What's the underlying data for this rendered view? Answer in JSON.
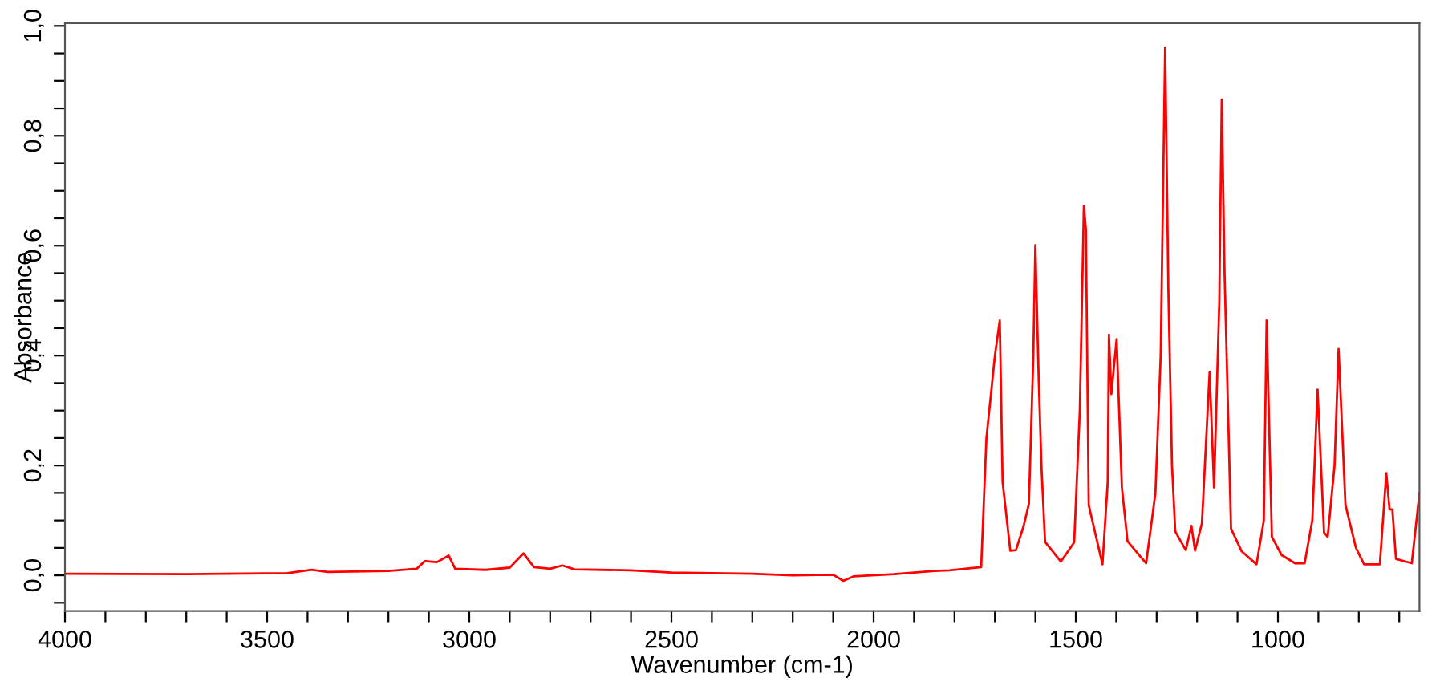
{
  "chart_data": {
    "type": "line",
    "xlabel": "Wavenumber (cm-1)",
    "ylabel": "Absorbance",
    "xlim": [
      4000,
      650
    ],
    "ylim": [
      -0.065,
      1.005
    ],
    "xticks": [
      4000,
      {
        "value": 3900,
        "label": null
      },
      {
        "value": 3800,
        "label": null
      },
      {
        "value": 3700,
        "label": null
      },
      {
        "value": 3600,
        "label": null
      },
      3500,
      {
        "value": 3400,
        "label": null
      },
      {
        "value": 3300,
        "label": null
      },
      {
        "value": 3200,
        "label": null
      },
      {
        "value": 3100,
        "label": null
      },
      3000,
      {
        "value": 2900,
        "label": null
      },
      {
        "value": 2800,
        "label": null
      },
      {
        "value": 2700,
        "label": null
      },
      {
        "value": 2600,
        "label": null
      },
      2500,
      {
        "value": 2400,
        "label": null
      },
      {
        "value": 2300,
        "label": null
      },
      {
        "value": 2200,
        "label": null
      },
      {
        "value": 2100,
        "label": null
      },
      2000,
      {
        "value": 1900,
        "label": null
      },
      {
        "value": 1800,
        "label": null
      },
      {
        "value": 1700,
        "label": null
      },
      {
        "value": 1600,
        "label": null
      },
      1500,
      {
        "value": 1400,
        "label": null
      },
      {
        "value": 1300,
        "label": null
      },
      {
        "value": 1200,
        "label": null
      },
      {
        "value": 1100,
        "label": null
      },
      1000,
      {
        "value": 900,
        "label": null
      },
      {
        "value": 800,
        "label": null
      },
      {
        "value": 700,
        "label": null
      }
    ],
    "yticks": [
      {
        "value": -0.05,
        "label": null
      },
      {
        "value": 0,
        "label": "0,0"
      },
      {
        "value": 0.05,
        "label": null
      },
      {
        "value": 0.1,
        "label": null
      },
      {
        "value": 0.15,
        "label": null
      },
      {
        "value": 0.2,
        "label": "0,2"
      },
      {
        "value": 0.25,
        "label": null
      },
      {
        "value": 0.3,
        "label": null
      },
      {
        "value": 0.35,
        "label": null
      },
      {
        "value": 0.4,
        "label": "0,4"
      },
      {
        "value": 0.45,
        "label": null
      },
      {
        "value": 0.5,
        "label": null
      },
      {
        "value": 0.55,
        "label": null
      },
      {
        "value": 0.6,
        "label": "0,6"
      },
      {
        "value": 0.65,
        "label": null
      },
      {
        "value": 0.7,
        "label": null
      },
      {
        "value": 0.75,
        "label": null
      },
      {
        "value": 0.8,
        "label": "0,8"
      },
      {
        "value": 0.85,
        "label": null
      },
      {
        "value": 0.9,
        "label": null
      },
      {
        "value": 0.95,
        "label": null
      },
      {
        "value": 1.0,
        "label": "1,0"
      }
    ],
    "grid": false,
    "legend": false,
    "marker": "none",
    "line_style": "solid",
    "series": [
      {
        "color": "#ff0000",
        "x": [
          4000,
          3700,
          3450,
          3390,
          3350,
          3200,
          3130,
          3110,
          3080,
          3051,
          3035,
          2960,
          2900,
          2866,
          2840,
          2800,
          2770,
          2740,
          2600,
          2500,
          2300,
          2200,
          2100,
          2075,
          2050,
          1950,
          1850,
          1813,
          1734,
          1721,
          1700,
          1688,
          1681,
          1662,
          1648,
          1629,
          1616,
          1605,
          1600,
          1592,
          1585,
          1576,
          1537,
          1504,
          1490,
          1480,
          1475,
          1468,
          1434,
          1421,
          1418,
          1412,
          1399,
          1386,
          1372,
          1326,
          1303,
          1290,
          1279,
          1271,
          1262,
          1254,
          1228,
          1214,
          1205,
          1188,
          1169,
          1158,
          1145,
          1139,
          1132,
          1116,
          1090,
          1053,
          1035,
          1028,
          1015,
          991,
          958,
          934,
          915,
          902,
          886,
          877,
          860,
          850,
          833,
          807,
          787,
          748,
          732,
          724,
          717,
          708,
          669,
          650
        ],
        "values": [
          0.003,
          0.002,
          0.004,
          0.01,
          0.006,
          0.008,
          0.012,
          0.026,
          0.024,
          0.036,
          0.012,
          0.01,
          0.014,
          0.04,
          0.015,
          0.012,
          0.018,
          0.011,
          0.009,
          0.005,
          0.003,
          0.0,
          0.001,
          -0.01,
          -0.002,
          0.002,
          0.008,
          0.009,
          0.015,
          0.25,
          0.4,
          0.464,
          0.17,
          0.045,
          0.046,
          0.09,
          0.13,
          0.4,
          0.601,
          0.365,
          0.2,
          0.061,
          0.025,
          0.06,
          0.3,
          0.672,
          0.63,
          0.128,
          0.02,
          0.17,
          0.438,
          0.33,
          0.43,
          0.16,
          0.062,
          0.022,
          0.15,
          0.4,
          0.961,
          0.52,
          0.2,
          0.08,
          0.046,
          0.09,
          0.045,
          0.095,
          0.37,
          0.16,
          0.5,
          0.866,
          0.55,
          0.085,
          0.044,
          0.02,
          0.1,
          0.464,
          0.07,
          0.037,
          0.022,
          0.022,
          0.1,
          0.338,
          0.078,
          0.07,
          0.2,
          0.412,
          0.128,
          0.05,
          0.02,
          0.02,
          0.186,
          0.12,
          0.12,
          0.03,
          0.022,
          0.149
        ]
      }
    ]
  }
}
